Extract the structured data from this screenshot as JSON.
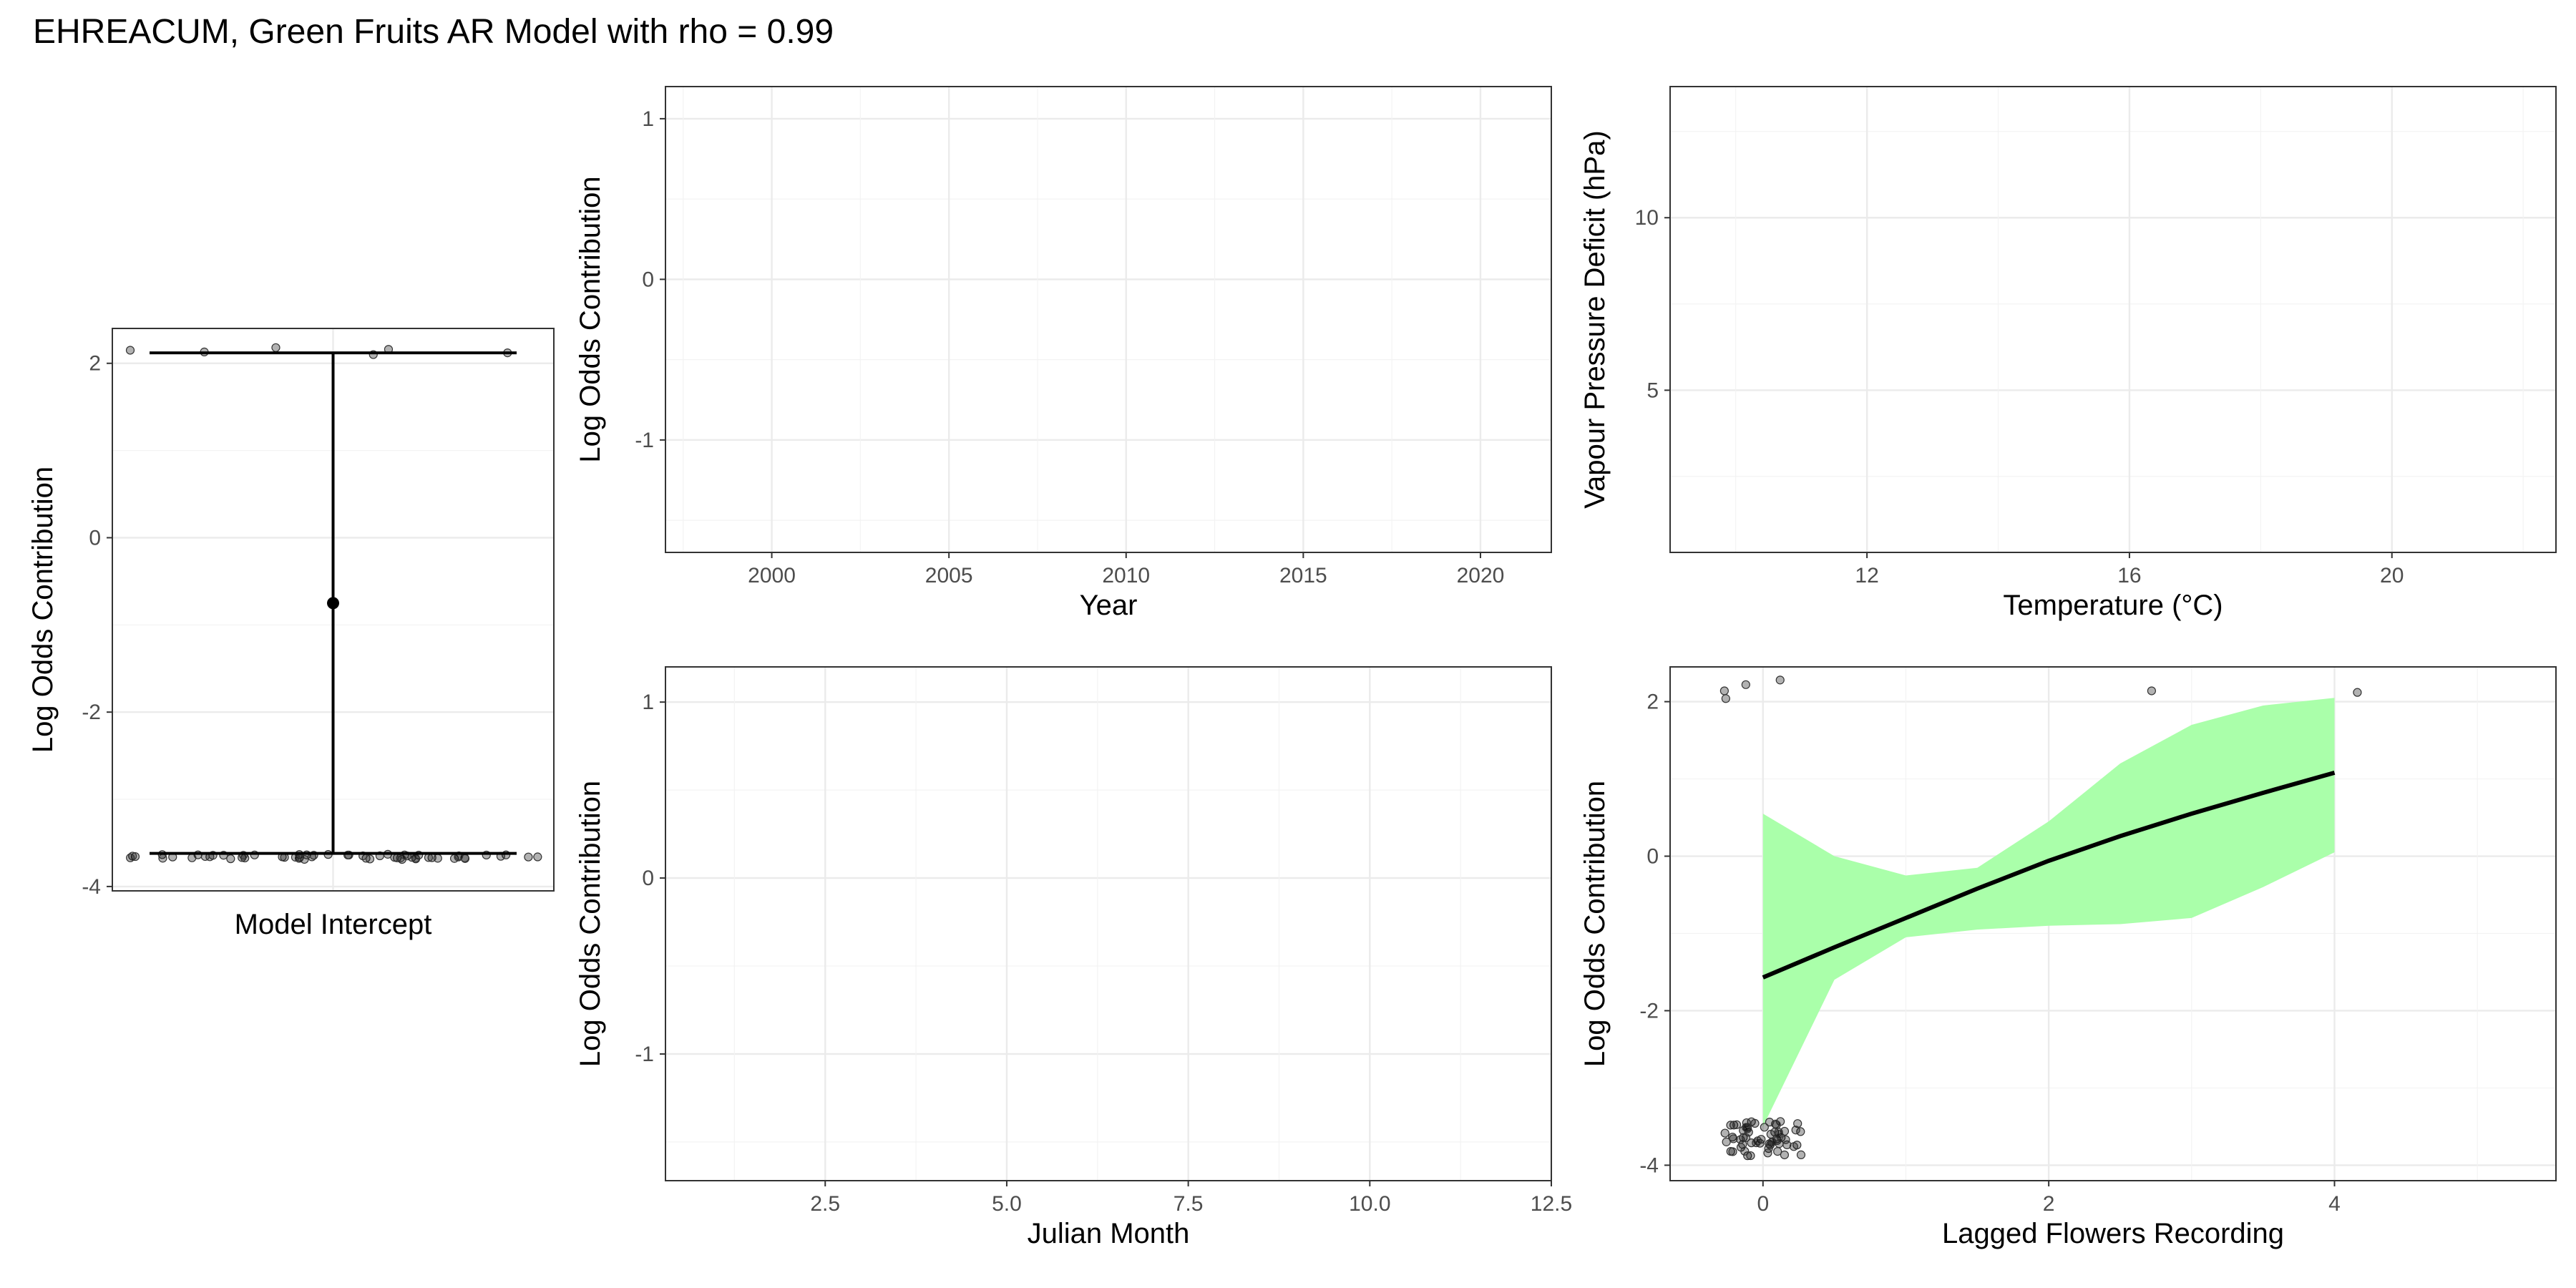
{
  "title": "EHREACUM, Green Fruits AR Model with rho = 0.99",
  "colors": {
    "ribbon": "#aaffaa",
    "line": "#000000",
    "points": "#000000",
    "grid": "#ebebeb"
  },
  "chart_data": [
    {
      "id": "intercept",
      "type": "errorbar",
      "xlabel": "Model Intercept",
      "ylabel": "Log Odds Contribution",
      "ylim": [
        -4.05,
        2.4
      ],
      "yticks": [
        2,
        0,
        -2,
        -4
      ],
      "grid": true,
      "estimate": -0.75,
      "ci_low": -3.62,
      "ci_high": 2.12,
      "points_low_count": 58,
      "points_high": [
        2.15,
        2.13,
        2.18,
        2.1,
        2.16,
        2.12
      ]
    },
    {
      "id": "year",
      "type": "line",
      "xlabel": "Year",
      "ylabel": "Log Odds Contribution",
      "xlim": [
        1997,
        2022
      ],
      "ylim": [
        -1.7,
        1.2
      ],
      "xticks": [
        2000,
        2005,
        2010,
        2015,
        2020
      ],
      "yticks": [
        1,
        0,
        -1
      ],
      "grid": true,
      "series": []
    },
    {
      "id": "temperature",
      "type": "line",
      "xlabel": "Temperature (°C)",
      "ylabel": "Vapour Pressure Deficit (hPa)",
      "xlim": [
        9,
        22.5
      ],
      "ylim": [
        0.3,
        13.8
      ],
      "xticks": [
        12,
        16,
        20
      ],
      "yticks": [
        10,
        5
      ],
      "grid": true,
      "series": []
    },
    {
      "id": "julian",
      "type": "line",
      "xlabel": "Julian Month",
      "ylabel": "Log Odds Contribution",
      "xlim": [
        0.3,
        12.5
      ],
      "ylim": [
        -1.72,
        1.2
      ],
      "xticks": [
        "2.5",
        "5.0",
        "7.5",
        "10.0",
        "12.5"
      ],
      "yticks": [
        1,
        0,
        -1
      ],
      "grid": true,
      "series": []
    },
    {
      "id": "lagged",
      "type": "line",
      "xlabel": "Lagged Flowers Recording",
      "ylabel": "Log Odds Contribution",
      "xlim": [
        -0.65,
        5.55
      ],
      "ylim": [
        -4.2,
        2.45
      ],
      "xticks": [
        0,
        2,
        4
      ],
      "yticks": [
        2,
        0,
        -2,
        -4
      ],
      "grid": true,
      "fit_x": [
        0,
        0.5,
        1,
        1.5,
        2,
        2.5,
        3,
        3.5,
        4
      ],
      "fit_y": [
        -1.57,
        -1.18,
        -0.8,
        -0.42,
        -0.06,
        0.26,
        0.55,
        0.82,
        1.08
      ],
      "ribbon_lower": [
        -3.5,
        -1.6,
        -1.05,
        -0.95,
        -0.9,
        -0.88,
        -0.8,
        -0.4,
        0.05
      ],
      "ribbon_upper": [
        0.55,
        0.0,
        -0.25,
        -0.15,
        0.45,
        1.2,
        1.7,
        1.95,
        2.05
      ],
      "points_high": [
        {
          "x": -0.27,
          "y": 2.14
        },
        {
          "x": -0.26,
          "y": 2.04
        },
        {
          "x": -0.12,
          "y": 2.22
        },
        {
          "x": 0.12,
          "y": 2.28
        },
        {
          "x": 2.72,
          "y": 2.14
        },
        {
          "x": 4.16,
          "y": 2.12
        }
      ],
      "points_low_count": 60
    }
  ]
}
